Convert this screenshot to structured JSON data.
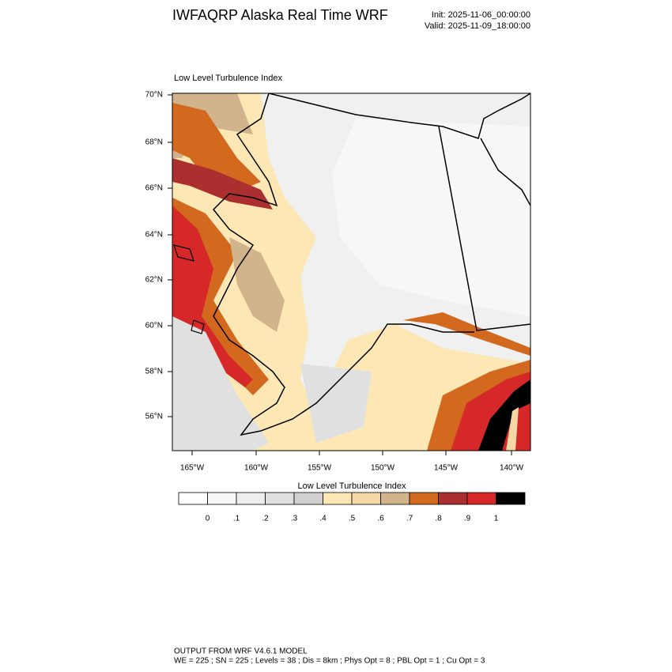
{
  "header": {
    "title": "IWFAQRP Alaska Real Time WRF",
    "init": "Init: 2025-11-06_00:00:00",
    "valid": "Valid: 2025-11-09_18:00:00"
  },
  "map": {
    "title": "Low Level Turbulence Index",
    "lat_labels": [
      "70°N",
      "68°N",
      "66°N",
      "64°N",
      "62°N",
      "60°N",
      "58°N",
      "56°N"
    ],
    "lon_labels": [
      "165°W",
      "160°W",
      "155°W",
      "150°W",
      "145°W",
      "140°W"
    ]
  },
  "colorbar": {
    "title": "Low Level Turbulence Index",
    "colors": [
      "#ffffff",
      "#f7f7f7",
      "#eeeeee",
      "#e0e0e0",
      "#d0d0d0",
      "#fde8b5",
      "#f6d7a6",
      "#d2b48c",
      "#d2691e",
      "#ab2f2f",
      "#d62828",
      "#000000"
    ],
    "labels": [
      "0",
      ".1",
      ".2",
      ".3",
      ".4",
      ".5",
      ".6",
      ".7",
      ".8",
      ".9",
      "1"
    ]
  },
  "footer": {
    "line1": "OUTPUT FROM WRF V4.6.1 MODEL",
    "line2": "WE = 225 ; SN = 225 ; Levels = 38 ; Dis = 8km ; Phys Opt = 8 ; PBL Opt = 1 ; Cu Opt = 3"
  }
}
